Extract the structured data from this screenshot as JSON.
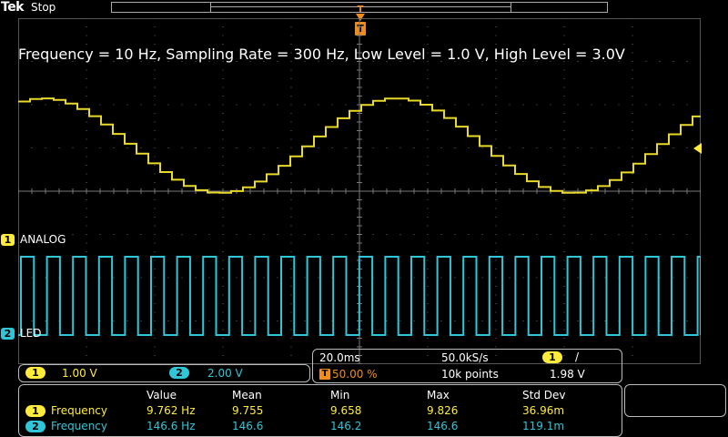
{
  "header": {
    "brand": "Tek",
    "state": "Stop",
    "trigger_marker": "T"
  },
  "title": "Frequency = 10 Hz, Sampling Rate = 300 Hz, Low Level = 1.0 V, High Level = 3.0V",
  "channels": {
    "ch1": {
      "number": "1",
      "name": "ANALOG",
      "color": "#ffeb3b",
      "scale": "1.00 V"
    },
    "ch2": {
      "number": "2",
      "name": "LED",
      "color": "#2fc7d8",
      "scale": "2.00 V"
    }
  },
  "timebase": {
    "time_per_div": "20.0ms",
    "sample_rate": "50.0kS/s",
    "trigger_position": "50.00 %",
    "record_length": "10k points",
    "trigger_channel": "1",
    "trigger_slope": "/",
    "trigger_level": "1.98 V"
  },
  "measurements": {
    "headers": [
      "Value",
      "Mean",
      "Min",
      "Max",
      "Std Dev"
    ],
    "rows": [
      {
        "channel": "1",
        "name": "Frequency",
        "value": "9.762 Hz",
        "mean": "9.755",
        "min": "9.658",
        "max": "9.826",
        "std": "36.96m"
      },
      {
        "channel": "2",
        "name": "Frequency",
        "value": "146.6 Hz",
        "mean": "146.6",
        "min": "146.2",
        "max": "146.6",
        "std": "119.1m"
      }
    ]
  }
}
